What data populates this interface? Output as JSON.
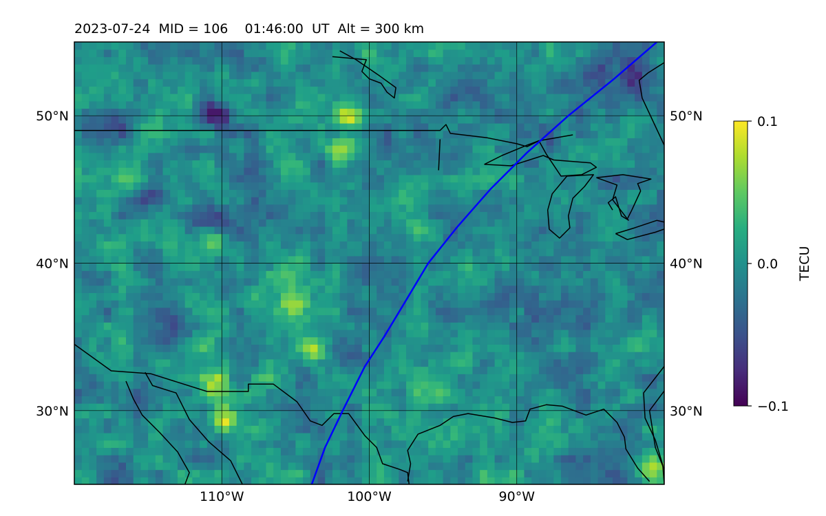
{
  "title": "2023-07-24  MID = 106    01:46:00  UT  Alt = 300 km",
  "map": {
    "lon_range": [
      -120,
      -80
    ],
    "lat_range": [
      25,
      55
    ],
    "lat_ticks": [
      {
        "value": 30,
        "label": "30°N"
      },
      {
        "value": 40,
        "label": "40°N"
      },
      {
        "value": 50,
        "label": "50°N"
      }
    ],
    "lon_ticks": [
      {
        "value": -110,
        "label": "110°W"
      },
      {
        "value": -100,
        "label": "100°W"
      },
      {
        "value": -90,
        "label": "90°W"
      }
    ],
    "gridlines": true,
    "field_colormap": "viridis",
    "field_resolution_deg": 0.5,
    "track_color": "#0000ff",
    "track": [
      [
        -103.9,
        25
      ],
      [
        -103.0,
        27.5
      ],
      [
        -101.8,
        30
      ],
      [
        -100.3,
        33
      ],
      [
        -99.0,
        35
      ],
      [
        -97.5,
        37.5
      ],
      [
        -96.0,
        40
      ],
      [
        -94.0,
        42.5
      ],
      [
        -91.8,
        45
      ],
      [
        -89.3,
        47.5
      ],
      [
        -86.5,
        50
      ],
      [
        -83.4,
        52.5
      ],
      [
        -80.5,
        55
      ]
    ],
    "coastline_color": "#000000"
  },
  "colorbar": {
    "label": "TECU",
    "min": -0.1,
    "max": 0.1,
    "ticks": [
      {
        "value": 0.1,
        "label": "0.1"
      },
      {
        "value": 0.0,
        "label": "0.0"
      },
      {
        "value": -0.1,
        "label": "−0.1"
      }
    ]
  }
}
